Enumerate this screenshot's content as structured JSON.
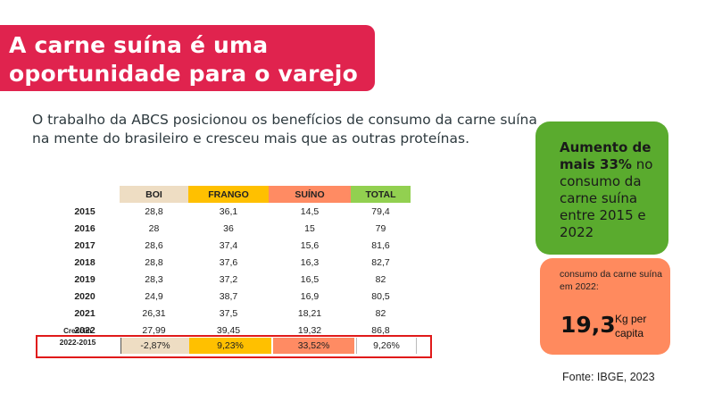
{
  "title": {
    "line1": "A carne suína é uma",
    "line2": "oportunidade para o varejo"
  },
  "subtitle": {
    "line1": "O trabalho da ABCS posicionou os benefícios de consumo da carne suína",
    "line2": "na mente do brasileiro e cresceu mais que as outras proteínas."
  },
  "colors": {
    "banner": "#e0234e",
    "boi": "#eeddc3",
    "frango": "#ffc000",
    "suino": "#ff8b63",
    "total": "#92d050",
    "green_card": "#5aab2e",
    "salmon_card": "#ff8a5e",
    "highlight_border": "#e01a1a"
  },
  "table": {
    "headers": [
      "BOI",
      "FRANGO",
      "SUÍNO",
      "TOTAL"
    ],
    "rows": [
      {
        "year": "2015",
        "values": [
          "28,8",
          "36,1",
          "14,5",
          "79,4"
        ]
      },
      {
        "year": "2016",
        "values": [
          "28",
          "36",
          "15",
          "79"
        ]
      },
      {
        "year": "2017",
        "values": [
          "28,6",
          "37,4",
          "15,6",
          "81,6"
        ]
      },
      {
        "year": "2018",
        "values": [
          "28,8",
          "37,6",
          "16,3",
          "82,7"
        ]
      },
      {
        "year": "2019",
        "values": [
          "28,3",
          "37,2",
          "16,5",
          "82"
        ]
      },
      {
        "year": "2020",
        "values": [
          "24,9",
          "38,7",
          "16,9",
          "80,5"
        ]
      },
      {
        "year": "2021",
        "values": [
          "26,31",
          "37,5",
          "18,21",
          "82"
        ]
      },
      {
        "year": "2022",
        "values": [
          "27,99",
          "39,45",
          "19,32",
          "86,8"
        ]
      }
    ],
    "growth": {
      "label": "Crescim.",
      "period": "2022-2015",
      "values": [
        "-2,87%",
        "9,23%",
        "33,52%",
        "9,26%"
      ]
    }
  },
  "green_card": {
    "bold": "Aumento de mais 33%",
    "rest": " no consumo da carne suína entre 2015 e 2022"
  },
  "salmon_card": {
    "label": "consumo da carne suína em 2022:",
    "value": "19,3",
    "unit": "Kg per capita"
  },
  "source": "Fonte: IBGE, 2023"
}
